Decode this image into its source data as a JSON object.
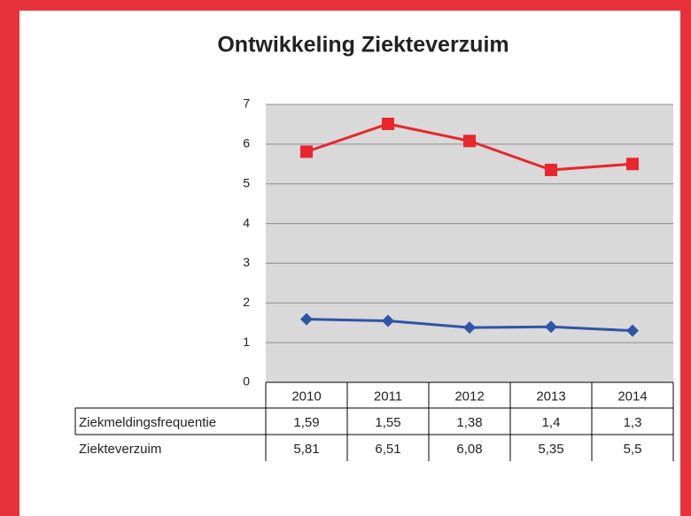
{
  "chart_data": {
    "type": "line",
    "title": "Ontwikkeling Ziekteverzuim",
    "categories": [
      "2010",
      "2011",
      "2012",
      "2013",
      "2014"
    ],
    "series": [
      {
        "name": "Ziekmeldingsfrequentie",
        "color": "#2f55a8",
        "marker": "diamond",
        "values": [
          1.59,
          1.55,
          1.38,
          1.4,
          1.3
        ],
        "value_labels": [
          "1,59",
          "1,55",
          "1,38",
          "1,4",
          "1,3"
        ]
      },
      {
        "name": "Ziekteverzuim",
        "color": "#e8262c",
        "marker": "square",
        "values": [
          5.81,
          6.51,
          6.08,
          5.35,
          5.5
        ],
        "value_labels": [
          "5,81",
          "6,51",
          "6,08",
          "5,35",
          "5,5"
        ]
      }
    ],
    "ylim": [
      0,
      7
    ],
    "yticks": [
      0,
      1,
      2,
      3,
      4,
      5,
      6,
      7
    ],
    "grid": true
  }
}
